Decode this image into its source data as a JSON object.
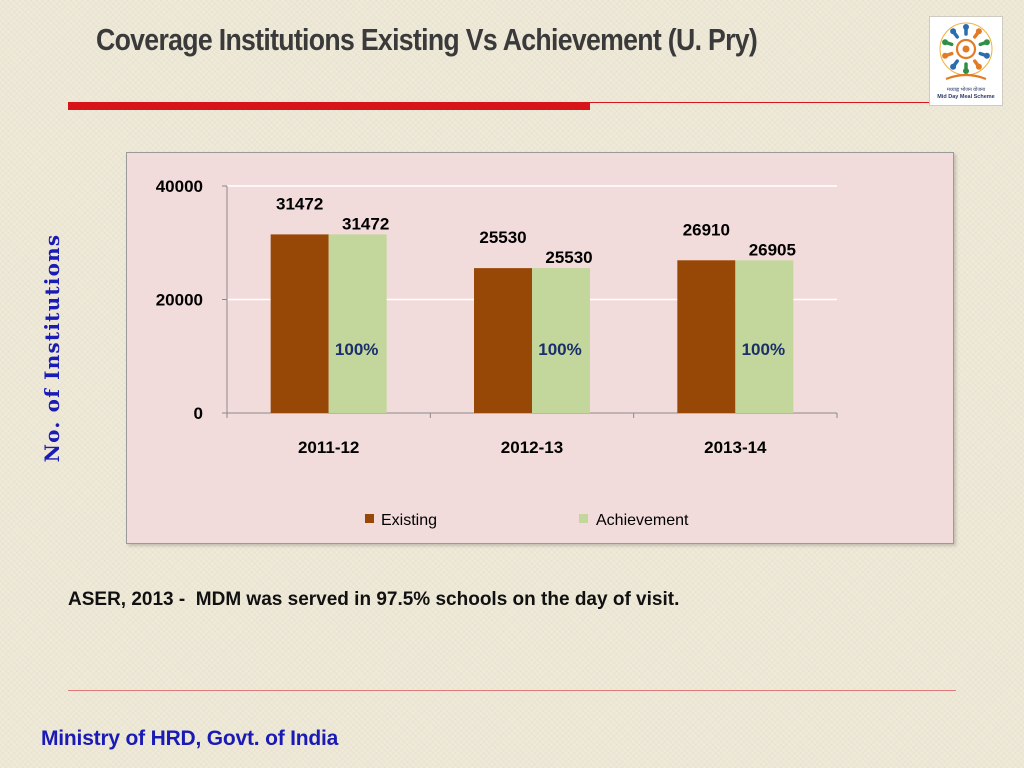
{
  "slide": {
    "title": "Coverage Institutions Existing Vs Achievement (U. Pry)",
    "note": "ASER, 2013 -  MDM was served in 97.5% schools on the day of visit.",
    "footer": "Ministry of HRD, Govt. of India",
    "logo": {
      "icon": "mid-day-meal-emblem",
      "line1": "मध्याह्न भोजन योजना",
      "line2": "Mid Day Meal Scheme"
    }
  },
  "colors": {
    "title_rule": "#d8141b",
    "existing": "#974706",
    "achievement": "#c3d69b",
    "plot_background": "#f2dcdb",
    "axis_title": "#1a1ab4"
  },
  "chart_data": {
    "type": "bar",
    "title": "",
    "ylabel": "No. of Institutions",
    "xlabel": "",
    "categories": [
      "2011-12",
      "2012-13",
      "2013-14"
    ],
    "series": [
      {
        "name": "Existing",
        "values": [
          31472,
          25530,
          26910
        ],
        "labels": [
          "31472",
          "25530",
          "26910"
        ]
      },
      {
        "name": "Achievement",
        "values": [
          31472,
          25530,
          26905
        ],
        "labels": [
          "31472",
          "25530",
          "26905"
        ]
      }
    ],
    "percent_labels": [
      "100%",
      "100%",
      "100%"
    ],
    "ylim": [
      0,
      40000
    ],
    "yticks": [
      0,
      20000,
      40000
    ],
    "ytick_labels": [
      "0",
      "20000",
      "40000"
    ],
    "grid": true,
    "legend": "bottom"
  }
}
